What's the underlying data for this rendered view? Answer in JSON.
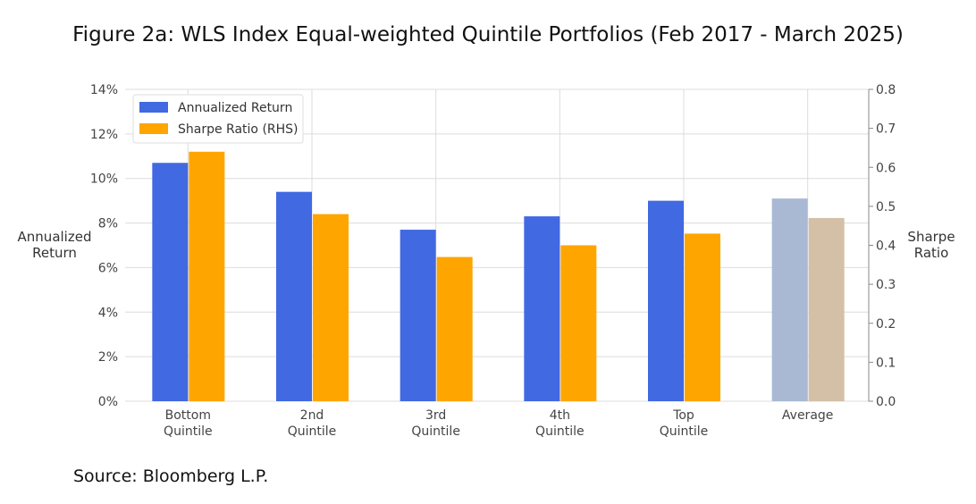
{
  "chart_data": {
    "type": "bar",
    "title": "Figure 2a: WLS Index Equal-weighted Quintile Portfolios (Feb 2017 - March 2025)",
    "source": "Source: Bloomberg L.P.",
    "categories": [
      [
        "Bottom",
        "Quintile"
      ],
      [
        "2nd",
        "Quintile"
      ],
      [
        "3rd",
        "Quintile"
      ],
      [
        "4th",
        "Quintile"
      ],
      [
        "Top",
        "Quintile"
      ],
      [
        "Average"
      ]
    ],
    "ylabel": [
      "Annualized",
      "Return"
    ],
    "y2label": [
      "Sharpe",
      "Ratio"
    ],
    "ylim": [
      0,
      14
    ],
    "y2lim": [
      0,
      0.8
    ],
    "yticks": [
      "0%",
      "2%",
      "4%",
      "6%",
      "8%",
      "10%",
      "12%",
      "14%"
    ],
    "y2ticks": [
      "0.0",
      "0.1",
      "0.2",
      "0.3",
      "0.4",
      "0.5",
      "0.6",
      "0.7",
      "0.8"
    ],
    "grid": true,
    "legend_position": "top-left",
    "series": [
      {
        "name": "Annualized Return",
        "axis": "left",
        "unit": "%",
        "values": [
          10.7,
          9.4,
          7.7,
          8.3,
          9.0,
          9.1
        ],
        "color": "#4169e1",
        "average_color": "#a9b9d3"
      },
      {
        "name": "Sharpe Ratio (RHS)",
        "axis": "right",
        "values": [
          0.64,
          0.48,
          0.37,
          0.4,
          0.43,
          0.47
        ],
        "color": "#ffa500",
        "average_color": "#d3c0a7"
      }
    ]
  }
}
